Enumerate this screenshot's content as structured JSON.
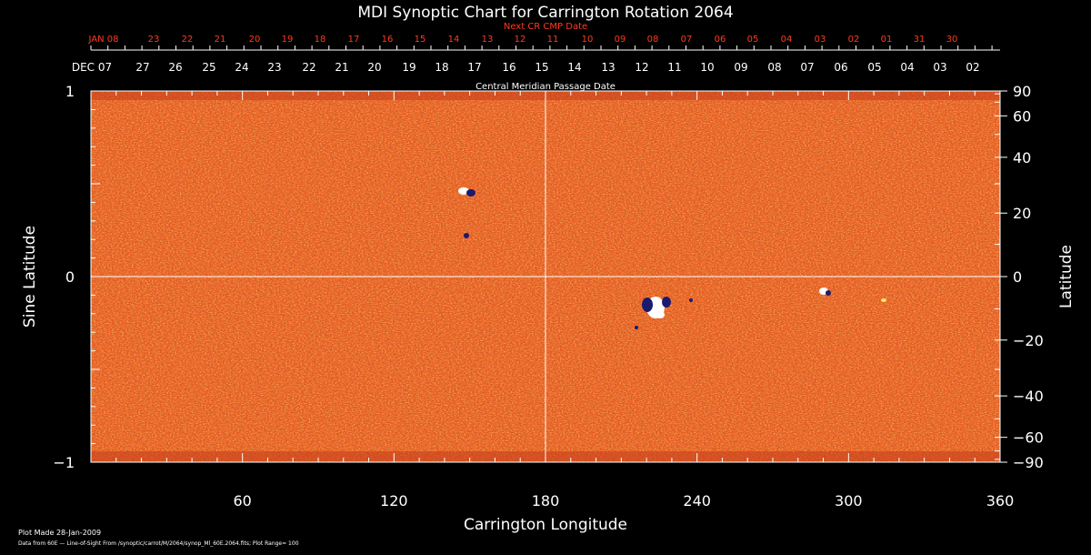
{
  "title": "MDI Synoptic Chart for Carrington Rotation 2064",
  "next_cr_label": "Next CR CMP Date",
  "cmp_label": "Central Meridian Passage Date",
  "top_dates_next": [
    "JAN 08",
    "23",
    "22",
    "21",
    "20",
    "19",
    "18",
    "17",
    "16",
    "15",
    "14",
    "13",
    "12",
    "11",
    "10",
    "09",
    "08",
    "07",
    "06",
    "05",
    "04",
    "03",
    "02",
    "01",
    "31",
    "30"
  ],
  "top_dates_current": [
    "DEC 07",
    "27",
    "26",
    "25",
    "24",
    "23",
    "22",
    "21",
    "20",
    "19",
    "18",
    "17",
    "16",
    "15",
    "14",
    "13",
    "12",
    "11",
    "10",
    "09",
    "08",
    "07",
    "06",
    "05",
    "04",
    "03",
    "02"
  ],
  "x_axis": {
    "label": "Carrington Longitude",
    "ticks": [
      "60",
      "120",
      "180",
      "240",
      "300",
      "360"
    ],
    "tick_values": [
      60,
      120,
      180,
      240,
      300,
      360
    ],
    "range": [
      0,
      360
    ]
  },
  "left_axis": {
    "label": "Sine Latitude",
    "ticks": [
      "1",
      "0",
      "−1"
    ],
    "tick_values": [
      1,
      0,
      -1
    ]
  },
  "right_axis": {
    "label": "Latitude",
    "ticks": [
      "90",
      "60",
      "40",
      "20",
      "0",
      "−20",
      "−40",
      "−60",
      "−90"
    ],
    "tick_values": [
      90,
      60,
      40,
      20,
      0,
      -20,
      -40,
      -60,
      -90
    ]
  },
  "footer_made": "Plot Made 28-Jan-2009",
  "footer_source": "Data from 60E — Line-of-Sight From /synoptic/carrot/M/2064/synop_Ml_60E.2064.fits; Plot Range= 100",
  "colors": {
    "text_red": "#ff3b1c",
    "map_base": "#e85a1e",
    "grid": "#ffffff"
  }
}
